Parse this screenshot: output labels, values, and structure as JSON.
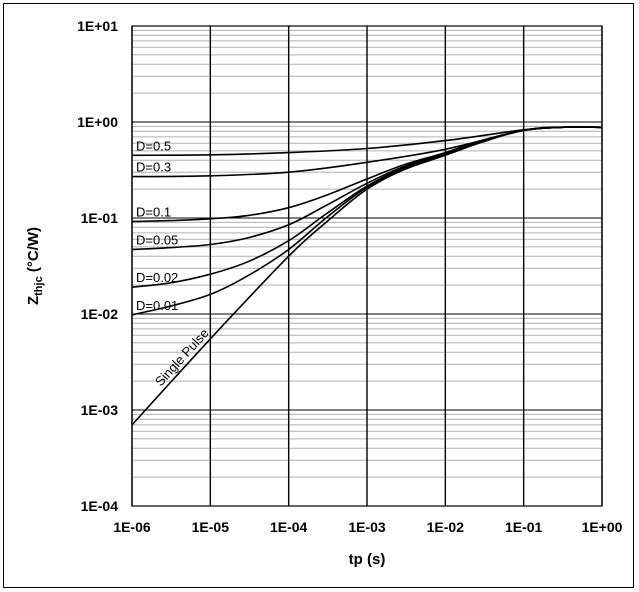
{
  "chart_data": {
    "type": "line",
    "xlabel": "tp (s)",
    "ylabel": "Zthjc (°C/W)",
    "ylabel_main": "Z",
    "ylabel_sub": "thjc",
    "ylabel_unit": " (°C/W)",
    "x_scale": "log",
    "y_scale": "log",
    "xlim": [
      1e-06,
      1
    ],
    "ylim": [
      0.0001,
      10
    ],
    "grid": true,
    "x_ticks": [
      1e-06,
      1e-05,
      0.0001,
      0.001,
      0.01,
      0.1,
      1
    ],
    "x_tick_labels": [
      "1E-06",
      "1E-05",
      "1E-04",
      "1E-03",
      "1E-02",
      "1E-01",
      "1E+00"
    ],
    "y_ticks": [
      0.0001,
      0.001,
      0.01,
      0.1,
      1,
      10
    ],
    "y_tick_labels": [
      "1E-04",
      "1E-03",
      "1E-02",
      "1E-01",
      "1E+00",
      "1E+01"
    ],
    "series": [
      {
        "name": "Single Pulse",
        "x": [
          1e-06,
          1e-05,
          0.0001,
          0.0003,
          0.001,
          0.003,
          0.01,
          0.03,
          0.1,
          0.3,
          1
        ],
        "y": [
          0.0007,
          0.0055,
          0.04,
          0.09,
          0.2,
          0.32,
          0.45,
          0.62,
          0.82,
          0.88,
          0.88
        ]
      },
      {
        "name": "D=0.01",
        "x": [
          1e-06,
          3e-06,
          1e-05,
          3e-05,
          0.0001,
          0.0003,
          0.001,
          0.003,
          0.01,
          0.03,
          0.1,
          0.3,
          1
        ],
        "y": [
          0.0098,
          0.012,
          0.016,
          0.025,
          0.047,
          0.1,
          0.21,
          0.33,
          0.46,
          0.63,
          0.82,
          0.88,
          0.88
        ]
      },
      {
        "name": "D=0.02",
        "x": [
          1e-06,
          3e-06,
          1e-05,
          3e-05,
          0.0001,
          0.0003,
          0.001,
          0.003,
          0.01,
          0.03,
          0.1,
          0.3,
          1
        ],
        "y": [
          0.019,
          0.021,
          0.026,
          0.035,
          0.058,
          0.11,
          0.215,
          0.335,
          0.465,
          0.635,
          0.82,
          0.88,
          0.88
        ]
      },
      {
        "name": "D=0.05",
        "x": [
          1e-06,
          3e-06,
          1e-05,
          3e-05,
          0.0001,
          0.0003,
          0.001,
          0.003,
          0.01,
          0.03,
          0.1,
          0.3,
          1
        ],
        "y": [
          0.047,
          0.049,
          0.053,
          0.062,
          0.085,
          0.135,
          0.23,
          0.345,
          0.47,
          0.64,
          0.82,
          0.88,
          0.88
        ]
      },
      {
        "name": "D=0.1",
        "x": [
          1e-06,
          3e-06,
          1e-05,
          3e-05,
          0.0001,
          0.0003,
          0.001,
          0.003,
          0.01,
          0.03,
          0.1,
          0.3,
          1
        ],
        "y": [
          0.092,
          0.094,
          0.098,
          0.106,
          0.128,
          0.172,
          0.255,
          0.36,
          0.48,
          0.645,
          0.82,
          0.88,
          0.88
        ]
      },
      {
        "name": "D=0.3",
        "x": [
          1e-06,
          1e-05,
          0.0001,
          0.001,
          0.01,
          0.1,
          0.3,
          1
        ],
        "y": [
          0.27,
          0.275,
          0.3,
          0.38,
          0.52,
          0.82,
          0.88,
          0.88
        ]
      },
      {
        "name": "D=0.5",
        "x": [
          1e-06,
          1e-05,
          0.0001,
          0.001,
          0.01,
          0.1,
          0.3,
          1
        ],
        "y": [
          0.45,
          0.455,
          0.48,
          0.53,
          0.64,
          0.83,
          0.88,
          0.88
        ]
      }
    ]
  }
}
